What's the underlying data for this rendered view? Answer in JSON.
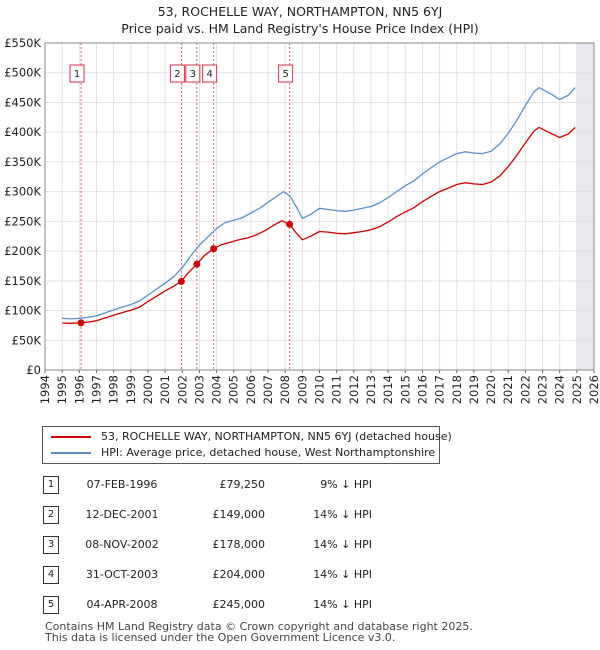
{
  "title_line1": "53, ROCHELLE WAY, NORTHAMPTON, NN5 6YJ",
  "title_line2": "Price paid vs. HM Land Registry's House Price Index (HPI)",
  "legend": {
    "property": "53, ROCHELLE WAY, NORTHAMPTON, NN5 6YJ (detached house)",
    "hpi": "HPI: Average price, detached house, West Northamptonshire"
  },
  "colors": {
    "property": "#cc0000",
    "hpi": "#5b8fc9",
    "marker_line": "#e06070",
    "future_shade": "#e8e8ee"
  },
  "sales": [
    {
      "num": "1",
      "date": "07-FEB-1996",
      "price": "£79,250",
      "diff": "9% ↓ HPI"
    },
    {
      "num": "2",
      "date": "12-DEC-2001",
      "price": "£149,000",
      "diff": "14% ↓ HPI"
    },
    {
      "num": "3",
      "date": "08-NOV-2002",
      "price": "£178,000",
      "diff": "14% ↓ HPI"
    },
    {
      "num": "4",
      "date": "31-OCT-2003",
      "price": "£204,000",
      "diff": "14% ↓ HPI"
    },
    {
      "num": "5",
      "date": "04-APR-2008",
      "price": "£245,000",
      "diff": "14% ↓ HPI"
    }
  ],
  "footer": {
    "line1": "Contains HM Land Registry data © Crown copyright and database right 2025.",
    "line2": "This data is licensed under the Open Government Licence v3.0."
  },
  "chart_data": {
    "type": "line",
    "title": "53, ROCHELLE WAY, NORTHAMPTON, NN5 6YJ — Price paid vs. HM Land Registry's House Price Index (HPI)",
    "xlabel": "",
    "ylabel": "",
    "xlim": [
      1994,
      2026
    ],
    "ylim": [
      0,
      550000
    ],
    "x_ticks": [
      1994,
      1995,
      1996,
      1997,
      1998,
      1999,
      2000,
      2001,
      2002,
      2003,
      2004,
      2005,
      2006,
      2007,
      2008,
      2009,
      2010,
      2011,
      2012,
      2013,
      2014,
      2015,
      2016,
      2017,
      2018,
      2019,
      2020,
      2021,
      2022,
      2023,
      2024,
      2025,
      2026
    ],
    "y_ticks": [
      {
        "value": 0,
        "label": "£0"
      },
      {
        "value": 50000,
        "label": "£50K"
      },
      {
        "value": 100000,
        "label": "£100K"
      },
      {
        "value": 150000,
        "label": "£150K"
      },
      {
        "value": 200000,
        "label": "£200K"
      },
      {
        "value": 250000,
        "label": "£250K"
      },
      {
        "value": 300000,
        "label": "£300K"
      },
      {
        "value": 350000,
        "label": "£350K"
      },
      {
        "value": 400000,
        "label": "£400K"
      },
      {
        "value": 450000,
        "label": "£450K"
      },
      {
        "value": 500000,
        "label": "£500K"
      },
      {
        "value": 550000,
        "label": "£550K"
      }
    ],
    "grid": true,
    "data_available_until": 2025.0,
    "series": [
      {
        "name": "HPI: Average price, detached house, West Northamptonshire",
        "color": "#5b8fc9",
        "points": [
          [
            1995.0,
            87000
          ],
          [
            1995.5,
            86000
          ],
          [
            1996.0,
            87000
          ],
          [
            1996.5,
            88500
          ],
          [
            1997.0,
            91000
          ],
          [
            1997.5,
            96000
          ],
          [
            1998.0,
            101000
          ],
          [
            1998.5,
            106000
          ],
          [
            1999.0,
            110000
          ],
          [
            1999.5,
            116000
          ],
          [
            2000.0,
            126000
          ],
          [
            2000.5,
            136000
          ],
          [
            2001.0,
            146000
          ],
          [
            2001.5,
            157000
          ],
          [
            2002.0,
            172000
          ],
          [
            2002.5,
            192000
          ],
          [
            2003.0,
            210000
          ],
          [
            2003.5,
            224000
          ],
          [
            2004.0,
            238000
          ],
          [
            2004.5,
            248000
          ],
          [
            2005.0,
            252000
          ],
          [
            2005.5,
            256000
          ],
          [
            2006.0,
            264000
          ],
          [
            2006.5,
            272000
          ],
          [
            2007.0,
            282000
          ],
          [
            2007.5,
            292000
          ],
          [
            2007.9,
            300000
          ],
          [
            2008.3,
            292000
          ],
          [
            2008.7,
            272000
          ],
          [
            2009.0,
            255000
          ],
          [
            2009.5,
            262000
          ],
          [
            2010.0,
            272000
          ],
          [
            2010.5,
            270000
          ],
          [
            2011.0,
            268000
          ],
          [
            2011.5,
            267000
          ],
          [
            2012.0,
            269000
          ],
          [
            2012.5,
            272000
          ],
          [
            2013.0,
            275000
          ],
          [
            2013.5,
            281000
          ],
          [
            2014.0,
            290000
          ],
          [
            2014.5,
            300000
          ],
          [
            2015.0,
            310000
          ],
          [
            2015.5,
            318000
          ],
          [
            2016.0,
            330000
          ],
          [
            2016.5,
            340000
          ],
          [
            2017.0,
            350000
          ],
          [
            2017.5,
            357000
          ],
          [
            2018.0,
            364000
          ],
          [
            2018.5,
            367000
          ],
          [
            2019.0,
            365000
          ],
          [
            2019.5,
            364000
          ],
          [
            2020.0,
            368000
          ],
          [
            2020.5,
            380000
          ],
          [
            2021.0,
            398000
          ],
          [
            2021.5,
            420000
          ],
          [
            2022.0,
            445000
          ],
          [
            2022.5,
            468000
          ],
          [
            2022.8,
            475000
          ],
          [
            2023.0,
            472000
          ],
          [
            2023.5,
            464000
          ],
          [
            2024.0,
            455000
          ],
          [
            2024.5,
            462000
          ],
          [
            2024.9,
            475000
          ]
        ]
      },
      {
        "name": "53, ROCHELLE WAY, NORTHAMPTON, NN5 6YJ (detached house)",
        "color": "#cc0000",
        "points": [
          [
            1995.0,
            79000
          ],
          [
            1995.5,
            78500
          ],
          [
            1996.1,
            79250
          ],
          [
            1996.5,
            80500
          ],
          [
            1997.0,
            83000
          ],
          [
            1997.5,
            87500
          ],
          [
            1998.0,
            92000
          ],
          [
            1998.5,
            96500
          ],
          [
            1999.0,
            100500
          ],
          [
            1999.5,
            105500
          ],
          [
            2000.0,
            115000
          ],
          [
            2000.5,
            124000
          ],
          [
            2001.0,
            133000
          ],
          [
            2001.5,
            141000
          ],
          [
            2001.95,
            149000
          ],
          [
            2002.3,
            162000
          ],
          [
            2002.85,
            178000
          ],
          [
            2003.3,
            193000
          ],
          [
            2003.83,
            204000
          ],
          [
            2004.3,
            211000
          ],
          [
            2004.8,
            215000
          ],
          [
            2005.3,
            219000
          ],
          [
            2005.8,
            222000
          ],
          [
            2006.3,
            227000
          ],
          [
            2006.8,
            234000
          ],
          [
            2007.3,
            243000
          ],
          [
            2007.8,
            251000
          ],
          [
            2008.26,
            245000
          ],
          [
            2008.6,
            232000
          ],
          [
            2009.0,
            219000
          ],
          [
            2009.5,
            225000
          ],
          [
            2010.0,
            233000
          ],
          [
            2010.5,
            232000
          ],
          [
            2011.0,
            230000
          ],
          [
            2011.5,
            229000
          ],
          [
            2012.0,
            231000
          ],
          [
            2012.5,
            233000
          ],
          [
            2013.0,
            236000
          ],
          [
            2013.5,
            241000
          ],
          [
            2014.0,
            249000
          ],
          [
            2014.5,
            258000
          ],
          [
            2015.0,
            266000
          ],
          [
            2015.5,
            273000
          ],
          [
            2016.0,
            283000
          ],
          [
            2016.5,
            292000
          ],
          [
            2017.0,
            300000
          ],
          [
            2017.5,
            306000
          ],
          [
            2018.0,
            312000
          ],
          [
            2018.5,
            315000
          ],
          [
            2019.0,
            313000
          ],
          [
            2019.5,
            312000
          ],
          [
            2020.0,
            316000
          ],
          [
            2020.5,
            326000
          ],
          [
            2021.0,
            342000
          ],
          [
            2021.5,
            361000
          ],
          [
            2022.0,
            382000
          ],
          [
            2022.5,
            402000
          ],
          [
            2022.8,
            408000
          ],
          [
            2023.0,
            405000
          ],
          [
            2023.5,
            398000
          ],
          [
            2024.0,
            391000
          ],
          [
            2024.5,
            397000
          ],
          [
            2024.9,
            408000
          ]
        ]
      }
    ],
    "sale_markers": [
      {
        "label": "1",
        "x": 1996.1,
        "value": 79250
      },
      {
        "label": "2",
        "x": 2001.95,
        "value": 149000
      },
      {
        "label": "3",
        "x": 2002.85,
        "value": 178000
      },
      {
        "label": "4",
        "x": 2003.83,
        "value": 204000
      },
      {
        "label": "5",
        "x": 2008.26,
        "value": 245000
      }
    ]
  }
}
